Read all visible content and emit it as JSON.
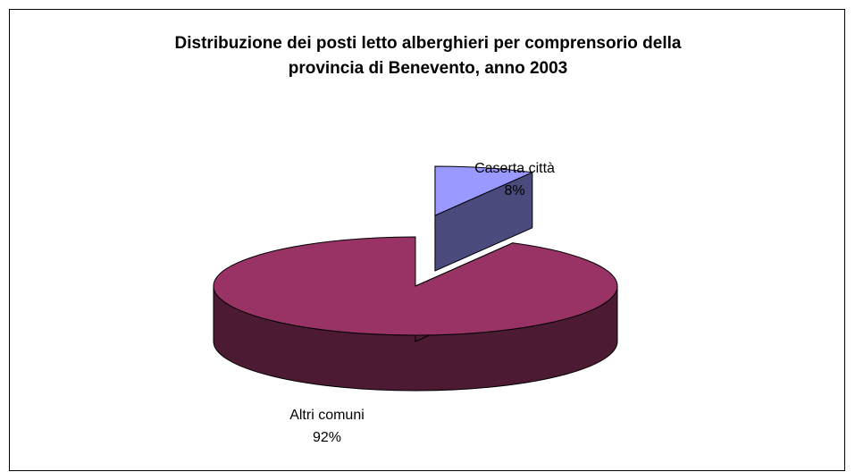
{
  "chart_data": {
    "type": "pie",
    "title_lines": [
      "Distribuzione dei posti letto alberghieri per comprensorio della",
      "provincia di Benevento, anno 2003"
    ],
    "slices": [
      {
        "label": "Caserta città",
        "percent_label": "8%",
        "value": 8,
        "color": "#9999ff",
        "side_color": "#4a4a7d",
        "exploded": true
      },
      {
        "label": "Altri comuni",
        "percent_label": "92%",
        "value": 92,
        "color": "#993366",
        "side_color": "#4d1a33",
        "exploded": false
      }
    ],
    "style": "3d-exploded",
    "legend": "none"
  }
}
